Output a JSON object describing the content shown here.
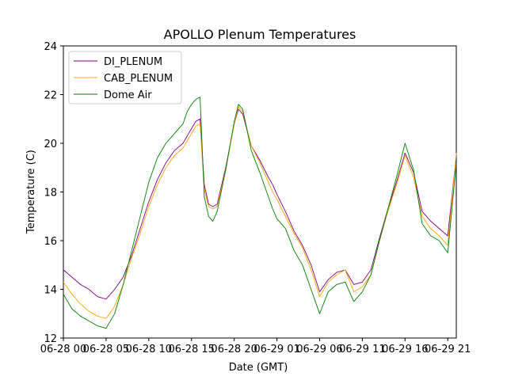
{
  "colors": {
    "background": "#ffffff",
    "axis": "#000000",
    "di_plenum": "#800080",
    "cab_plenum": "#ffa500",
    "dome_air": "#008000"
  },
  "chart_data": {
    "type": "line",
    "title": "APOLLO Plenum Temperatures",
    "xlabel": "Date (GMT)",
    "ylabel": "Temperature (C)",
    "xlim": [
      0,
      46
    ],
    "ylim": [
      12,
      24
    ],
    "x_unit": "hours since 06-28 00:00 GMT",
    "yticks": [
      12,
      14,
      16,
      18,
      20,
      22,
      24
    ],
    "xticks": [
      {
        "x": 0,
        "label": "06-28 00"
      },
      {
        "x": 5,
        "label": "06-28 05"
      },
      {
        "x": 10,
        "label": "06-28 10"
      },
      {
        "x": 15,
        "label": "06-28 15"
      },
      {
        "x": 20,
        "label": "06-28 20"
      },
      {
        "x": 25,
        "label": "06-29 01"
      },
      {
        "x": 30,
        "label": "06-29 06"
      },
      {
        "x": 35,
        "label": "06-29 11"
      },
      {
        "x": 40,
        "label": "06-29 16"
      },
      {
        "x": 45,
        "label": "06-29 21"
      }
    ],
    "legend_position": "upper-left",
    "series": [
      {
        "name": "DI_PLENUM",
        "color": "#800080",
        "x": [
          0,
          1,
          2,
          3,
          4,
          5,
          6,
          7,
          8,
          9,
          10,
          11,
          12,
          13,
          14,
          14.5,
          15,
          15.5,
          16,
          16.5,
          17,
          17.5,
          18,
          19,
          20,
          20.5,
          21,
          22,
          23,
          24,
          24.5,
          25,
          26,
          27,
          28,
          29,
          30,
          31,
          32,
          33,
          34,
          35,
          36,
          37,
          38,
          39,
          40,
          41,
          42,
          43,
          44,
          45,
          46
        ],
        "y": [
          14.8,
          14.5,
          14.2,
          14.0,
          13.7,
          13.6,
          14.0,
          14.5,
          15.4,
          16.5,
          17.6,
          18.5,
          19.2,
          19.7,
          20.0,
          20.3,
          20.6,
          20.9,
          21.0,
          18.3,
          17.5,
          17.4,
          17.5,
          19.0,
          20.8,
          21.4,
          21.2,
          19.9,
          19.3,
          18.6,
          18.3,
          17.9,
          17.2,
          16.4,
          15.8,
          15.0,
          13.9,
          14.4,
          14.7,
          14.8,
          14.2,
          14.3,
          14.8,
          16.1,
          17.3,
          18.4,
          19.6,
          18.8,
          17.2,
          16.8,
          16.5,
          16.2,
          19.5
        ]
      },
      {
        "name": "CAB_PLENUM",
        "color": "#ffa500",
        "x": [
          0,
          1,
          2,
          3,
          4,
          5,
          6,
          7,
          8,
          9,
          10,
          11,
          12,
          13,
          14,
          14.5,
          15,
          15.5,
          16,
          16.5,
          17,
          17.5,
          18,
          19,
          20,
          20.5,
          21,
          22,
          23,
          24,
          24.5,
          25,
          26,
          27,
          28,
          29,
          30,
          31,
          32,
          33,
          34,
          35,
          36,
          37,
          38,
          39,
          40,
          41,
          42,
          43,
          44,
          45,
          46
        ],
        "y": [
          14.3,
          13.8,
          13.4,
          13.1,
          12.9,
          12.8,
          13.3,
          14.2,
          15.3,
          16.3,
          17.4,
          18.3,
          19.0,
          19.5,
          19.8,
          20.1,
          20.4,
          20.7,
          20.8,
          18.1,
          17.4,
          17.3,
          17.4,
          18.9,
          20.8,
          21.5,
          21.3,
          19.9,
          19.2,
          18.4,
          18.0,
          17.7,
          17.0,
          16.3,
          15.7,
          14.8,
          13.7,
          14.3,
          14.6,
          14.8,
          13.9,
          14.1,
          14.6,
          16.0,
          17.2,
          18.3,
          19.5,
          18.6,
          17.0,
          16.5,
          16.2,
          15.8,
          19.6
        ]
      },
      {
        "name": "Dome Air",
        "color": "#008000",
        "x": [
          0,
          1,
          2,
          3,
          4,
          5,
          6,
          7,
          8,
          9,
          10,
          11,
          12,
          13,
          14,
          14.5,
          15,
          15.5,
          16,
          16.5,
          17,
          17.5,
          18,
          19,
          20,
          20.5,
          21,
          22,
          23,
          24,
          24.5,
          25,
          26,
          27,
          28,
          29,
          30,
          31,
          32,
          33,
          34,
          35,
          36,
          37,
          38,
          39,
          40,
          41,
          42,
          43,
          44,
          45,
          46
        ],
        "y": [
          13.8,
          13.2,
          12.9,
          12.7,
          12.5,
          12.4,
          13.0,
          14.2,
          15.6,
          17.0,
          18.4,
          19.4,
          20.0,
          20.4,
          20.8,
          21.3,
          21.6,
          21.8,
          21.9,
          17.8,
          17.0,
          16.8,
          17.2,
          18.9,
          20.9,
          21.6,
          21.4,
          19.7,
          18.8,
          17.8,
          17.3,
          16.9,
          16.5,
          15.6,
          15.0,
          14.0,
          13.0,
          13.9,
          14.2,
          14.3,
          13.5,
          13.9,
          14.6,
          16.0,
          17.3,
          18.6,
          20.0,
          18.9,
          16.7,
          16.2,
          16.0,
          15.5,
          19.2
        ]
      }
    ]
  }
}
